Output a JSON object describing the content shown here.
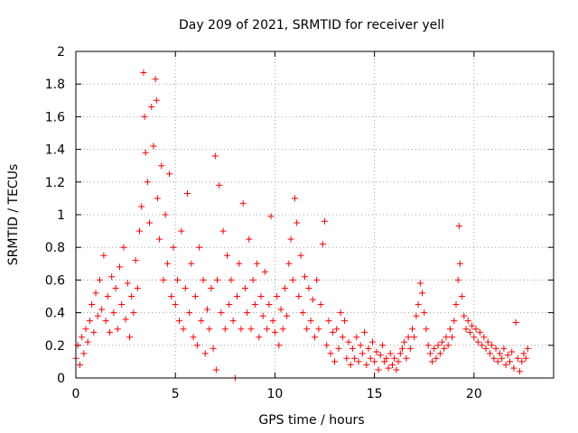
{
  "chart_data": {
    "type": "scatter",
    "title": "Day 209 of 2021, SRMTID for receiver yell",
    "xlabel": "GPS time / hours",
    "ylabel": "SRMTID / TECUs",
    "xlim": [
      0,
      24
    ],
    "ylim": [
      0,
      2
    ],
    "xticks": [
      0,
      5,
      10,
      15,
      20
    ],
    "xtick_labels": [
      "0",
      "5",
      "10",
      "15",
      "20"
    ],
    "yticks": [
      0,
      0.2,
      0.4,
      0.6,
      0.8,
      1,
      1.2,
      1.4,
      1.6,
      1.8,
      2
    ],
    "ytick_labels": [
      "0",
      "0.2",
      "0.4",
      "0.6",
      "0.8",
      "1",
      "1.2",
      "1.4",
      "1.6",
      "1.8",
      "2"
    ],
    "grid": true,
    "marker": "+",
    "color": "#ff0000",
    "series": [
      {
        "name": "SRMTID",
        "points": [
          [
            0.0,
            0.12
          ],
          [
            0.1,
            0.2
          ],
          [
            0.2,
            0.08
          ],
          [
            0.3,
            0.25
          ],
          [
            0.4,
            0.15
          ],
          [
            0.5,
            0.3
          ],
          [
            0.6,
            0.22
          ],
          [
            0.7,
            0.35
          ],
          [
            0.8,
            0.45
          ],
          [
            0.9,
            0.28
          ],
          [
            1.0,
            0.52
          ],
          [
            1.1,
            0.38
          ],
          [
            1.2,
            0.6
          ],
          [
            1.3,
            0.42
          ],
          [
            1.4,
            0.75
          ],
          [
            1.5,
            0.35
          ],
          [
            1.6,
            0.5
          ],
          [
            1.7,
            0.28
          ],
          [
            1.8,
            0.62
          ],
          [
            1.9,
            0.4
          ],
          [
            2.0,
            0.55
          ],
          [
            2.1,
            0.3
          ],
          [
            2.2,
            0.68
          ],
          [
            2.3,
            0.45
          ],
          [
            2.4,
            0.8
          ],
          [
            2.5,
            0.36
          ],
          [
            2.6,
            0.58
          ],
          [
            2.7,
            0.25
          ],
          [
            2.8,
            0.5
          ],
          [
            2.9,
            0.4
          ],
          [
            3.0,
            0.72
          ],
          [
            3.1,
            0.55
          ],
          [
            3.2,
            0.9
          ],
          [
            3.3,
            1.05
          ],
          [
            3.4,
            1.87
          ],
          [
            3.45,
            1.6
          ],
          [
            3.5,
            1.38
          ],
          [
            3.6,
            1.2
          ],
          [
            3.7,
            0.95
          ],
          [
            3.8,
            1.66
          ],
          [
            3.9,
            1.42
          ],
          [
            4.0,
            1.83
          ],
          [
            4.05,
            1.7
          ],
          [
            4.1,
            1.1
          ],
          [
            4.2,
            0.85
          ],
          [
            4.3,
            1.3
          ],
          [
            4.4,
            0.6
          ],
          [
            4.5,
            1.0
          ],
          [
            4.6,
            0.7
          ],
          [
            4.7,
            1.25
          ],
          [
            4.8,
            0.5
          ],
          [
            4.9,
            0.8
          ],
          [
            5.0,
            0.45
          ],
          [
            5.1,
            0.6
          ],
          [
            5.2,
            0.35
          ],
          [
            5.3,
            0.9
          ],
          [
            5.4,
            0.3
          ],
          [
            5.5,
            0.55
          ],
          [
            5.6,
            1.13
          ],
          [
            5.7,
            0.4
          ],
          [
            5.8,
            0.7
          ],
          [
            5.9,
            0.25
          ],
          [
            6.0,
            0.5
          ],
          [
            6.1,
            0.2
          ],
          [
            6.2,
            0.8
          ],
          [
            6.3,
            0.35
          ],
          [
            6.4,
            0.6
          ],
          [
            6.5,
            0.15
          ],
          [
            6.6,
            0.42
          ],
          [
            6.7,
            0.3
          ],
          [
            6.8,
            0.55
          ],
          [
            6.9,
            0.18
          ],
          [
            7.0,
            1.36
          ],
          [
            7.05,
            0.05
          ],
          [
            7.1,
            0.6
          ],
          [
            7.2,
            1.18
          ],
          [
            7.3,
            0.4
          ],
          [
            7.4,
            0.9
          ],
          [
            7.5,
            0.3
          ],
          [
            7.6,
            0.75
          ],
          [
            7.7,
            0.45
          ],
          [
            7.8,
            0.6
          ],
          [
            7.9,
            0.35
          ],
          [
            8.0,
            0.0
          ],
          [
            8.1,
            0.5
          ],
          [
            8.2,
            0.7
          ],
          [
            8.3,
            0.3
          ],
          [
            8.4,
            1.07
          ],
          [
            8.5,
            0.55
          ],
          [
            8.6,
            0.4
          ],
          [
            8.7,
            0.85
          ],
          [
            8.8,
            0.3
          ],
          [
            8.9,
            0.6
          ],
          [
            9.0,
            0.45
          ],
          [
            9.1,
            0.7
          ],
          [
            9.2,
            0.25
          ],
          [
            9.3,
            0.5
          ],
          [
            9.4,
            0.38
          ],
          [
            9.5,
            0.65
          ],
          [
            9.6,
            0.3
          ],
          [
            9.7,
            0.45
          ],
          [
            9.8,
            0.99
          ],
          [
            9.9,
            0.35
          ],
          [
            10.0,
            0.28
          ],
          [
            10.1,
            0.5
          ],
          [
            10.2,
            0.2
          ],
          [
            10.3,
            0.42
          ],
          [
            10.4,
            0.3
          ],
          [
            10.5,
            0.55
          ],
          [
            10.6,
            0.38
          ],
          [
            10.7,
            0.7
          ],
          [
            10.8,
            0.85
          ],
          [
            10.9,
            0.6
          ],
          [
            11.0,
            1.1
          ],
          [
            11.1,
            0.95
          ],
          [
            11.2,
            0.5
          ],
          [
            11.3,
            0.75
          ],
          [
            11.4,
            0.4
          ],
          [
            11.5,
            0.62
          ],
          [
            11.6,
            0.3
          ],
          [
            11.7,
            0.55
          ],
          [
            11.8,
            0.35
          ],
          [
            11.9,
            0.48
          ],
          [
            12.0,
            0.25
          ],
          [
            12.1,
            0.6
          ],
          [
            12.2,
            0.3
          ],
          [
            12.3,
            0.45
          ],
          [
            12.4,
            0.82
          ],
          [
            12.5,
            0.96
          ],
          [
            12.6,
            0.2
          ],
          [
            12.7,
            0.35
          ],
          [
            12.8,
            0.15
          ],
          [
            12.9,
            0.28
          ],
          [
            13.0,
            0.1
          ],
          [
            13.1,
            0.3
          ],
          [
            13.2,
            0.18
          ],
          [
            13.3,
            0.4
          ],
          [
            13.4,
            0.25
          ],
          [
            13.5,
            0.35
          ],
          [
            13.6,
            0.12
          ],
          [
            13.7,
            0.22
          ],
          [
            13.8,
            0.08
          ],
          [
            13.9,
            0.18
          ],
          [
            14.0,
            0.12
          ],
          [
            14.1,
            0.25
          ],
          [
            14.2,
            0.1
          ],
          [
            14.3,
            0.2
          ],
          [
            14.4,
            0.15
          ],
          [
            14.5,
            0.28
          ],
          [
            14.6,
            0.08
          ],
          [
            14.7,
            0.18
          ],
          [
            14.8,
            0.12
          ],
          [
            14.9,
            0.22
          ],
          [
            15.0,
            0.1
          ],
          [
            15.1,
            0.16
          ],
          [
            15.2,
            0.05
          ],
          [
            15.3,
            0.14
          ],
          [
            15.4,
            0.2
          ],
          [
            15.5,
            0.1
          ],
          [
            15.6,
            0.12
          ],
          [
            15.7,
            0.06
          ],
          [
            15.8,
            0.15
          ],
          [
            15.9,
            0.08
          ],
          [
            16.0,
            0.12
          ],
          [
            16.1,
            0.05
          ],
          [
            16.2,
            0.1
          ],
          [
            16.3,
            0.15
          ],
          [
            16.4,
            0.18
          ],
          [
            16.5,
            0.22
          ],
          [
            16.6,
            0.12
          ],
          [
            16.7,
            0.25
          ],
          [
            16.8,
            0.18
          ],
          [
            16.9,
            0.3
          ],
          [
            17.0,
            0.25
          ],
          [
            17.1,
            0.38
          ],
          [
            17.2,
            0.45
          ],
          [
            17.3,
            0.58
          ],
          [
            17.4,
            0.52
          ],
          [
            17.5,
            0.4
          ],
          [
            17.6,
            0.3
          ],
          [
            17.7,
            0.2
          ],
          [
            17.8,
            0.15
          ],
          [
            17.9,
            0.1
          ],
          [
            18.0,
            0.18
          ],
          [
            18.1,
            0.12
          ],
          [
            18.2,
            0.2
          ],
          [
            18.3,
            0.15
          ],
          [
            18.4,
            0.22
          ],
          [
            18.5,
            0.18
          ],
          [
            18.6,
            0.25
          ],
          [
            18.7,
            0.2
          ],
          [
            18.8,
            0.3
          ],
          [
            18.9,
            0.25
          ],
          [
            19.0,
            0.35
          ],
          [
            19.1,
            0.45
          ],
          [
            19.2,
            0.6
          ],
          [
            19.25,
            0.93
          ],
          [
            19.3,
            0.7
          ],
          [
            19.4,
            0.5
          ],
          [
            19.5,
            0.38
          ],
          [
            19.6,
            0.3
          ],
          [
            19.7,
            0.35
          ],
          [
            19.8,
            0.28
          ],
          [
            19.9,
            0.32
          ],
          [
            20.0,
            0.25
          ],
          [
            20.1,
            0.3
          ],
          [
            20.2,
            0.22
          ],
          [
            20.3,
            0.28
          ],
          [
            20.4,
            0.2
          ],
          [
            20.5,
            0.25
          ],
          [
            20.6,
            0.18
          ],
          [
            20.7,
            0.22
          ],
          [
            20.8,
            0.15
          ],
          [
            20.9,
            0.2
          ],
          [
            21.0,
            0.12
          ],
          [
            21.1,
            0.18
          ],
          [
            21.2,
            0.1
          ],
          [
            21.3,
            0.15
          ],
          [
            21.4,
            0.12
          ],
          [
            21.5,
            0.18
          ],
          [
            21.6,
            0.08
          ],
          [
            21.7,
            0.14
          ],
          [
            21.8,
            0.1
          ],
          [
            21.9,
            0.16
          ],
          [
            22.0,
            0.06
          ],
          [
            22.1,
            0.34
          ],
          [
            22.2,
            0.12
          ],
          [
            22.3,
            0.04
          ],
          [
            22.4,
            0.1
          ],
          [
            22.5,
            0.15
          ],
          [
            22.6,
            0.12
          ],
          [
            22.7,
            0.18
          ]
        ]
      }
    ]
  }
}
